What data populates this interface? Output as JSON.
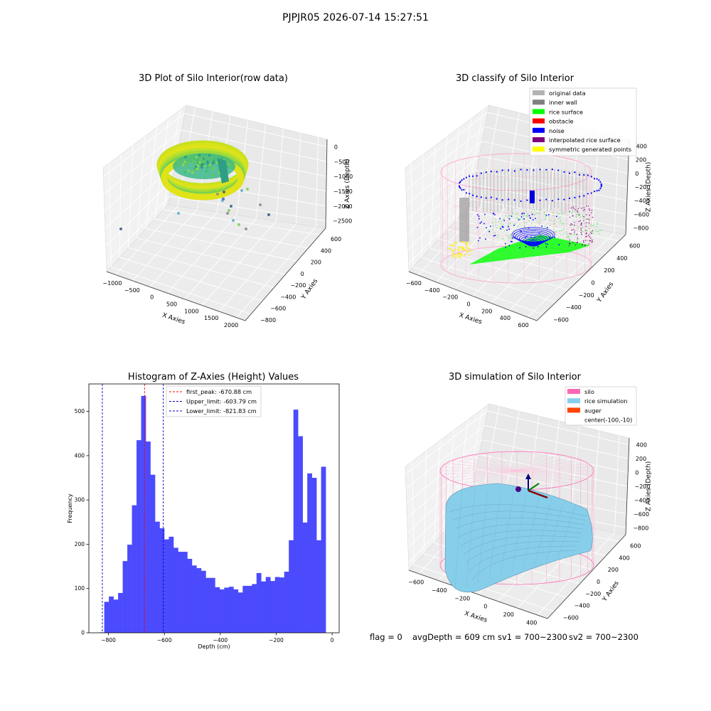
{
  "figure": {
    "suptitle": "PJPJR05 2026-07-14 15:27:51"
  },
  "status_line": {
    "flag": "flag = 0",
    "avg_depth": "avgDepth = 609 cm",
    "sv1": "sv1 = 700~2300",
    "sv2": "sv2 = 700~2300"
  },
  "colors": {
    "histogram_bar": "#4b4bfd",
    "peak_line": "#ff0000",
    "limit_line": "#0000cc",
    "silo_wire": "#ff69b4",
    "rice_sim": "#87ceeb",
    "rice_surface": "#00ff00",
    "noise": "#0000ff",
    "inner_wall": "#808080",
    "interpolated": "#800080",
    "symmetric": "#ffff00"
  },
  "chart_data": [
    {
      "type": "scatter",
      "title": "3D Plot of Silo Interior(row data)",
      "xlabel": "X Axies",
      "ylabel": "Y Axies",
      "zlabel": "Z Axies (Depth)",
      "xticks": [
        "−1000",
        "−500",
        "0",
        "500",
        "1000",
        "1500",
        "2000"
      ],
      "yticks": [
        "−800",
        "−600",
        "−400",
        "−200",
        "0",
        "200",
        "400",
        "600"
      ],
      "zticks": [
        "0",
        "−500",
        "−1000",
        "−1500",
        "−2000",
        "−2500"
      ],
      "xlim": [
        -1200,
        2200
      ],
      "ylim": [
        -900,
        700
      ],
      "zlim": [
        -2700,
        100
      ],
      "grid": true
    },
    {
      "type": "scatter",
      "title": "3D classify of Silo Interior",
      "xlabel": "X Axies",
      "ylabel": "Y Axies",
      "zlabel": "Z Axies (Depth)",
      "xticks": [
        "−600",
        "−400",
        "−200",
        "0",
        "200",
        "400",
        "600"
      ],
      "yticks": [
        "−600",
        "−400",
        "−200",
        "0",
        "200",
        "400",
        "600"
      ],
      "zticks": [
        "400",
        "200",
        "0",
        "−200",
        "−400",
        "−600",
        "−800"
      ],
      "legend": [
        {
          "label": "original data",
          "color": "#b3b3b3"
        },
        {
          "label": "inner wall",
          "color": "#808080"
        },
        {
          "label": "rice surface",
          "color": "#00ff00"
        },
        {
          "label": "obstacle",
          "color": "#ff0000"
        },
        {
          "label": "noise",
          "color": "#0000ff"
        },
        {
          "label": "interpolated rice surface",
          "color": "#800080"
        },
        {
          "label": "symmetric generated points",
          "color": "#ffff00"
        }
      ],
      "legend_loc": "upper right",
      "grid": true
    },
    {
      "type": "bar",
      "title": "Histogram of Z-Axies (Height) Values",
      "xlabel": "Depth (cm)",
      "ylabel": "Frequency",
      "bin_width": 16.5,
      "bin_edges_start": -815,
      "values": [
        70,
        82,
        75,
        90,
        162,
        199,
        288,
        435,
        535,
        432,
        357,
        251,
        236,
        211,
        217,
        192,
        183,
        183,
        167,
        152,
        146,
        140,
        124,
        124,
        103,
        98,
        102,
        104,
        98,
        91,
        106,
        106,
        110,
        135,
        116,
        126,
        117,
        126,
        125,
        138,
        209,
        504,
        444,
        249,
        360,
        350,
        209,
        375
      ],
      "extra_bins": [
        {
          "x0": -832,
          "x1": -815,
          "value": 1
        }
      ],
      "xlim": [
        -870,
        25
      ],
      "ylim": [
        0,
        562
      ],
      "xticks": [
        -800,
        -600,
        -400,
        -200,
        0
      ],
      "xtick_labels": [
        "−800",
        "−600",
        "−400",
        "−200",
        "0"
      ],
      "yticks": [
        0,
        100,
        200,
        300,
        400,
        500
      ],
      "yticks_labels": [
        "0",
        "100",
        "200",
        "300",
        "400",
        "500"
      ],
      "vlines": [
        {
          "x": -670.88,
          "label": "first_peak: -670.88 cm",
          "color": "#ff0000",
          "style": "dashed"
        },
        {
          "x": -603.79,
          "label": "Upper_limit: -603.79 cm",
          "color": "#0000cc",
          "style": "dashed"
        },
        {
          "x": -821.83,
          "label": "Lower_limit: -821.83 cm",
          "color": "#0000cc",
          "style": "dashed"
        }
      ],
      "legend_loc": "upper center",
      "grid": false
    },
    {
      "type": "scatter",
      "title": "3D simulation of Silo Interior",
      "xlabel": "X Axies",
      "ylabel": "Y Axies",
      "zlabel": "Z Axies (Depth)",
      "xticks": [
        "−600",
        "−400",
        "−200",
        "0",
        "200",
        "400"
      ],
      "yticks": [
        "−600",
        "−400",
        "−200",
        "0",
        "200",
        "400",
        "600"
      ],
      "zticks": [
        "400",
        "200",
        "0",
        "−200",
        "−400",
        "−600",
        "−800"
      ],
      "legend": [
        {
          "label": "silo",
          "color": "#ff69b4"
        },
        {
          "label": "rice simulation",
          "color": "#87ceeb"
        },
        {
          "label": "auger",
          "color": "#ff4500"
        },
        {
          "label": "center(-100,-10)",
          "color": ""
        }
      ],
      "legend_loc": "upper right",
      "grid": true
    }
  ]
}
